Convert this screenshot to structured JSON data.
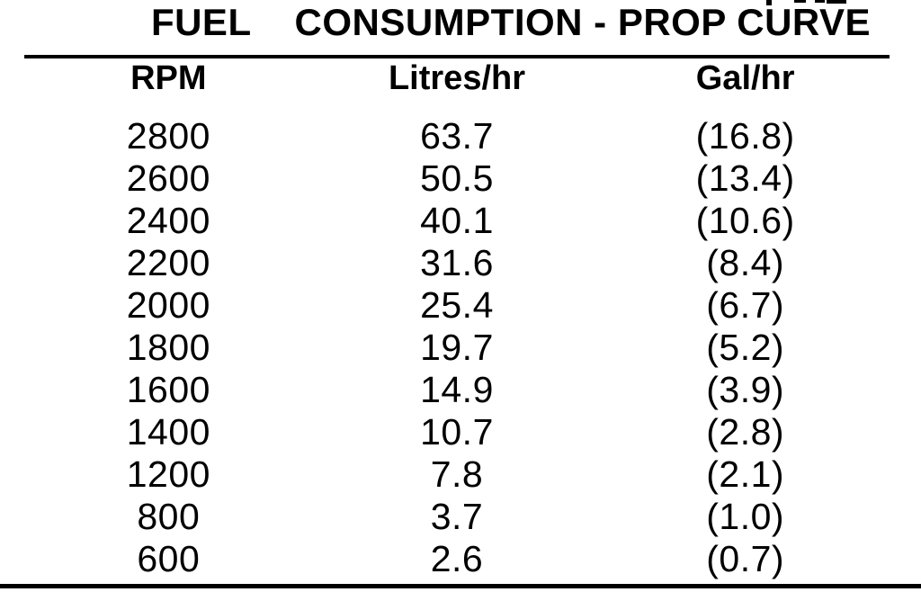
{
  "page": {
    "title": "FUEL    CONSUMPTION - PROP CURVE"
  },
  "table": {
    "headers": [
      "RPM",
      "Litres/hr",
      "Gal/hr"
    ],
    "rows": [
      [
        "2800",
        "63.7",
        "(16.8)"
      ],
      [
        "2600",
        "50.5",
        "(13.4)"
      ],
      [
        "2400",
        "40.1",
        "(10.6)"
      ],
      [
        "2200",
        "31.6",
        "(8.4)"
      ],
      [
        "2000",
        "25.4",
        "(6.7)"
      ],
      [
        "1800",
        "19.7",
        "(5.2)"
      ],
      [
        "1600",
        "14.9",
        "(3.9)"
      ],
      [
        "1400",
        "10.7",
        "(2.8)"
      ],
      [
        "1200",
        "7.8",
        "(2.1)"
      ],
      [
        "800",
        "3.7",
        "(1.0)"
      ],
      [
        "600",
        "2.6",
        "(0.7)"
      ]
    ]
  },
  "chart_data": {
    "type": "table",
    "title": "FUEL CONSUMPTION - PROP CURVE",
    "columns": [
      "RPM",
      "Litres/hr",
      "Gal/hr"
    ],
    "rows": [
      [
        2800,
        63.7,
        16.8
      ],
      [
        2600,
        50.5,
        13.4
      ],
      [
        2400,
        40.1,
        10.6
      ],
      [
        2200,
        31.6,
        8.4
      ],
      [
        2000,
        25.4,
        6.7
      ],
      [
        1800,
        19.7,
        5.2
      ],
      [
        1600,
        14.9,
        3.9
      ],
      [
        1400,
        10.7,
        2.8
      ],
      [
        1200,
        7.8,
        2.1
      ],
      [
        800,
        3.7,
        1.0
      ],
      [
        600,
        2.6,
        0.7
      ]
    ],
    "notes": "Gal/hr values are printed in parentheses"
  },
  "colors": {
    "text": "#000000",
    "background": "#ffffff"
  }
}
